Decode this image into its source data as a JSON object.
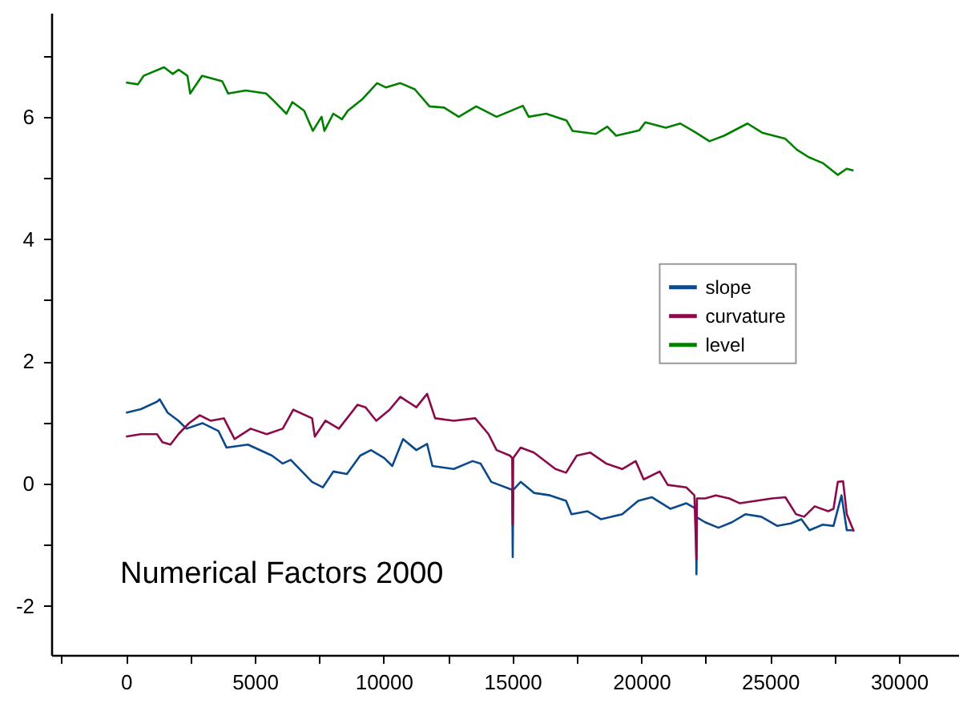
{
  "chart_data": {
    "type": "line",
    "annotations": [
      "Numerical Factors 2000"
    ],
    "xlim": [
      -2900,
      32300
    ],
    "xticks": [
      {
        "value": -2500,
        "label": null
      },
      0,
      {
        "value": 2500,
        "label": null
      },
      5000,
      {
        "value": 7500,
        "label": null
      },
      10000,
      {
        "value": 12500,
        "label": null
      },
      15000,
      {
        "value": 17500,
        "label": null
      },
      20000,
      {
        "value": 22500,
        "label": null
      },
      25000,
      {
        "value": 27500,
        "label": null
      },
      30000
    ],
    "ylim": [
      -2.8,
      7.7
    ],
    "yticks": [
      -2,
      {
        "value": -1,
        "label": null
      },
      0,
      {
        "value": 1,
        "label": null
      },
      2,
      {
        "value": 3,
        "label": null
      },
      4,
      {
        "value": 5,
        "label": null
      },
      6,
      {
        "value": 7,
        "label": null
      }
    ],
    "grid": false,
    "legend": "right",
    "series": [
      {
        "name": "slope",
        "color": "#0b4a8a",
        "x": [
          0,
          579,
          1202,
          1308,
          1619,
          2036,
          2347,
          2970,
          3593,
          3904,
          4732,
          5666,
          6083,
          6395,
          7223,
          7640,
          8051,
          8574,
          9091,
          9508,
          10025,
          10336,
          10753,
          11270,
          11687,
          11893,
          12721,
          13450,
          13761,
          14178,
          14990,
          15010,
          15030,
          15318,
          15834,
          16457,
          17080,
          17291,
          17914,
          18431,
          19259,
          19882,
          20405,
          21127,
          21750,
          22123,
          22140,
          22160,
          22478,
          22995,
          23518,
          24035,
          24658,
          25280,
          25797,
          26214,
          26526,
          27043,
          27460,
          27771,
          27977,
          28251
        ],
        "values": [
          1.16,
          1.22,
          1.34,
          1.38,
          1.16,
          1.03,
          0.9,
          0.99,
          0.86,
          0.59,
          0.64,
          0.46,
          0.33,
          0.39,
          0.03,
          -0.06,
          0.2,
          0.16,
          0.46,
          0.55,
          0.42,
          0.29,
          0.73,
          0.55,
          0.65,
          0.29,
          0.24,
          0.37,
          0.33,
          0.03,
          -0.1,
          -1.2,
          -0.1,
          0.03,
          -0.15,
          -0.19,
          -0.28,
          -0.5,
          -0.45,
          -0.58,
          -0.5,
          -0.28,
          -0.22,
          -0.41,
          -0.32,
          -0.41,
          -1.48,
          -0.55,
          -0.63,
          -0.72,
          -0.63,
          -0.5,
          -0.54,
          -0.69,
          -0.65,
          -0.58,
          -0.76,
          -0.67,
          -0.69,
          -0.19,
          -0.76,
          -0.76
        ]
      },
      {
        "name": "curvature",
        "color": "#8b0a4a",
        "x": [
          0,
          579,
          1202,
          1413,
          1725,
          2036,
          2447,
          2864,
          3281,
          3798,
          4215,
          4838,
          5461,
          6083,
          6494,
          7223,
          7329,
          7740,
          8263,
          8985,
          9296,
          9713,
          10230,
          10648,
          11270,
          11687,
          11999,
          12721,
          13555,
          14072,
          14384,
          14901,
          14990,
          15010,
          15030,
          15318,
          15834,
          16669,
          17080,
          17497,
          18014,
          18636,
          19259,
          19782,
          20093,
          20716,
          21027,
          21750,
          22061,
          22140,
          22160,
          22478,
          22895,
          23412,
          23829,
          24452,
          25075,
          25592,
          26009,
          26320,
          26731,
          27254,
          27460,
          27628,
          27833,
          27977,
          28251
        ],
        "values": [
          0.77,
          0.81,
          0.81,
          0.68,
          0.64,
          0.81,
          0.99,
          1.12,
          1.03,
          1.07,
          0.73,
          0.9,
          0.81,
          0.9,
          1.21,
          1.07,
          0.77,
          1.03,
          0.9,
          1.29,
          1.25,
          1.03,
          1.21,
          1.42,
          1.25,
          1.47,
          1.07,
          1.03,
          1.07,
          0.81,
          0.55,
          0.46,
          0.42,
          -0.67,
          0.42,
          0.59,
          0.51,
          0.24,
          0.18,
          0.46,
          0.51,
          0.33,
          0.24,
          0.37,
          0.07,
          0.2,
          -0.02,
          -0.06,
          -0.19,
          -1.24,
          -0.24,
          -0.24,
          -0.19,
          -0.24,
          -0.32,
          -0.28,
          -0.24,
          -0.22,
          -0.5,
          -0.54,
          -0.37,
          -0.45,
          -0.41,
          0.03,
          0.04,
          -0.5,
          -0.78
        ]
      },
      {
        "name": "level",
        "color": "#008000",
        "x": [
          0,
          461,
          685,
          1476,
          1818,
          2042,
          2385,
          2491,
          2951,
          3736,
          3966,
          4645,
          5442,
          5666,
          6227,
          6457,
          6912,
          7254,
          7590,
          7702,
          8045,
          8381,
          8611,
          9178,
          9745,
          10081,
          10648,
          11208,
          11781,
          12347,
          12914,
          13593,
          14384,
          15405,
          15629,
          16308,
          17098,
          17329,
          18232,
          18680,
          19023,
          19925,
          20156,
          20953,
          21513,
          22080,
          22646,
          23213,
          24122,
          24689,
          25592,
          26046,
          26495,
          27061,
          27628,
          27970,
          28238
        ],
        "values": [
          6.56,
          6.53,
          6.67,
          6.81,
          6.7,
          6.77,
          6.67,
          6.38,
          6.67,
          6.58,
          6.38,
          6.43,
          6.38,
          6.29,
          6.05,
          6.24,
          6.1,
          5.77,
          6.0,
          5.77,
          6.05,
          5.96,
          6.1,
          6.29,
          6.55,
          6.48,
          6.55,
          6.45,
          6.17,
          6.15,
          6.0,
          6.17,
          6.0,
          6.18,
          6.0,
          6.05,
          5.94,
          5.77,
          5.72,
          5.84,
          5.69,
          5.78,
          5.91,
          5.82,
          5.89,
          5.75,
          5.6,
          5.69,
          5.89,
          5.74,
          5.64,
          5.46,
          5.34,
          5.24,
          5.05,
          5.15,
          5.12
        ]
      }
    ]
  }
}
